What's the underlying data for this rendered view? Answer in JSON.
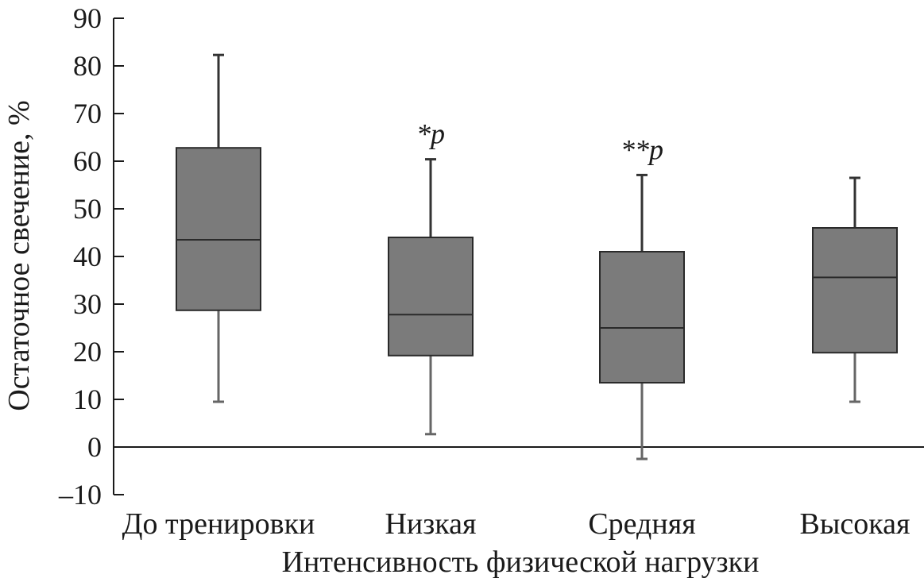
{
  "chart_data": {
    "type": "box",
    "xlabel": "Интенсивность физической нагрузки",
    "ylabel": "Остаточное свечение, %",
    "ylim": [
      -10,
      90
    ],
    "yticks": [
      -10,
      0,
      10,
      20,
      30,
      40,
      50,
      60,
      70,
      80,
      90
    ],
    "ytick_labels": [
      "–10",
      "0",
      "10",
      "20",
      "30",
      "40",
      "50",
      "60",
      "70",
      "80",
      "90"
    ],
    "zero_line": true,
    "grid": false,
    "legend": "none",
    "box_color": "#7b7b7b",
    "categories": [
      "До тренировки",
      "Низкая",
      "Средняя",
      "Высокая"
    ],
    "boxes": [
      {
        "category": "До тренировки",
        "min": 9.5,
        "q1": 28.7,
        "median": 43.5,
        "q3": 62.8,
        "max": 82.3,
        "annotation": ""
      },
      {
        "category": "Низкая",
        "min": 2.7,
        "q1": 19.2,
        "median": 27.8,
        "q3": 44.0,
        "max": 60.4,
        "annotation": "*p"
      },
      {
        "category": "Средняя",
        "min": -2.5,
        "q1": 13.5,
        "median": 25.0,
        "q3": 41.0,
        "max": 57.1,
        "annotation": "**p"
      },
      {
        "category": "Высокая",
        "min": 9.5,
        "q1": 19.8,
        "median": 35.6,
        "q3": 46.0,
        "max": 56.5,
        "annotation": ""
      }
    ]
  }
}
